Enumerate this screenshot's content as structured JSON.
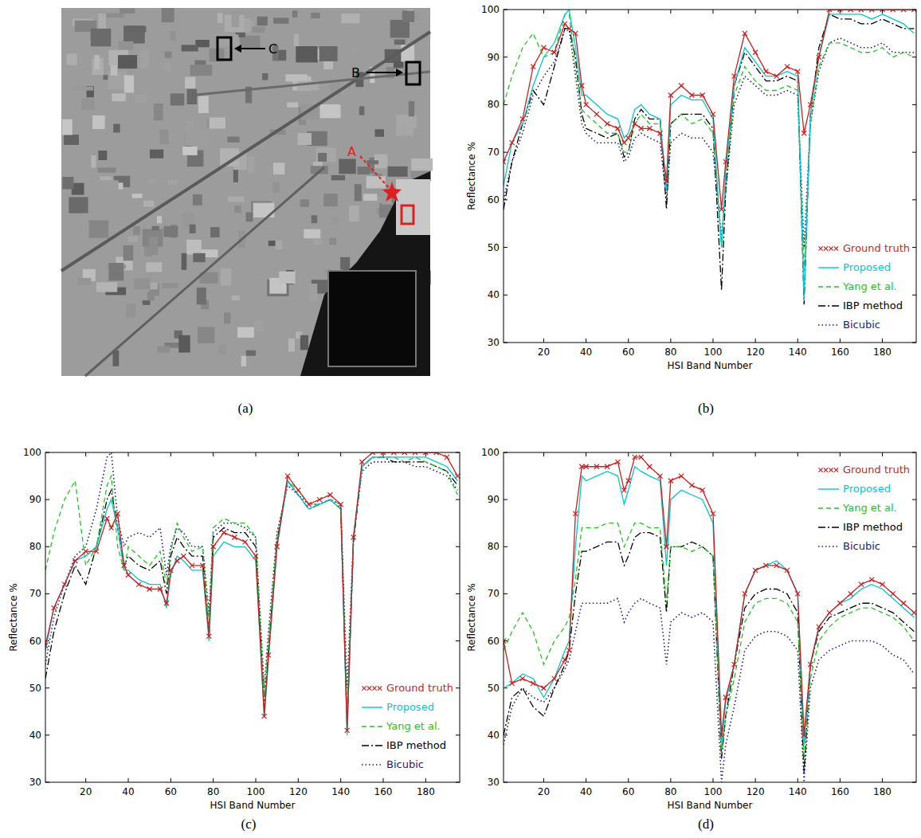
{
  "chart_data": [
    {
      "type": "image",
      "caption": "(a)",
      "annotations": [
        "A",
        "B",
        "C"
      ]
    },
    {
      "type": "line",
      "caption": "(b)",
      "x_label": "HSI Band Number",
      "y_label": "Reflectance %",
      "x": [
        1,
        5,
        10,
        15,
        20,
        25,
        30,
        32,
        35,
        38,
        40,
        45,
        50,
        55,
        58,
        60,
        63,
        66,
        70,
        75,
        78,
        80,
        85,
        90,
        95,
        100,
        104,
        106,
        110,
        115,
        120,
        125,
        130,
        135,
        140,
        143,
        146,
        150,
        155,
        160,
        165,
        170,
        175,
        180,
        185,
        190,
        195
      ],
      "xlim": [
        1,
        196
      ],
      "xticks": [
        20,
        40,
        60,
        80,
        100,
        120,
        140,
        160,
        180
      ],
      "ylim": [
        30,
        100
      ],
      "yticks": [
        30,
        40,
        50,
        60,
        70,
        80,
        90,
        100
      ],
      "legend": "lower right",
      "series": [
        {
          "name": "Ground truth",
          "color": "#cc1f1f",
          "marker": "x",
          "line_style": "solid",
          "values": [
            68,
            72,
            77,
            88,
            92,
            91,
            97,
            96,
            95,
            84,
            80,
            78,
            76,
            75,
            72,
            73,
            76,
            75,
            75,
            74,
            64,
            82,
            84,
            82,
            82,
            78,
            58,
            68,
            86,
            95,
            91,
            87,
            86,
            88,
            87,
            74,
            80,
            90,
            100,
            100,
            100,
            100,
            100,
            100,
            100,
            100,
            100
          ]
        },
        {
          "name": "Proposed",
          "color": "#00c8d2",
          "marker": "none",
          "line_style": "solid",
          "values": [
            63,
            72,
            76,
            84,
            90,
            93,
            99,
            100,
            92,
            82,
            82,
            80,
            78,
            77,
            73,
            74,
            79,
            80,
            78,
            77,
            62,
            80,
            82,
            81,
            81,
            77,
            50,
            66,
            84,
            92,
            89,
            86,
            86,
            87,
            86,
            39,
            78,
            90,
            99,
            99,
            99,
            99,
            98,
            99,
            98,
            97,
            95
          ]
        },
        {
          "name": "Yang et al.",
          "color": "#22c422",
          "marker": "none",
          "line_style": "dashed",
          "values": [
            80,
            86,
            92,
            95,
            90,
            91,
            99,
            99,
            88,
            79,
            78,
            76,
            74,
            74,
            70,
            70,
            76,
            78,
            76,
            76,
            62,
            76,
            78,
            76,
            77,
            74,
            50,
            64,
            82,
            88,
            85,
            83,
            83,
            84,
            83,
            45,
            76,
            88,
            93,
            93,
            92,
            91,
            91,
            92,
            90,
            91,
            90
          ]
        },
        {
          "name": "IBP method",
          "color": "#000000",
          "marker": "none",
          "line_style": "dashdot",
          "values": [
            58,
            68,
            76,
            83,
            80,
            88,
            96,
            96,
            90,
            78,
            75,
            74,
            73,
            74,
            69,
            70,
            77,
            79,
            77,
            77,
            58,
            76,
            78,
            78,
            78,
            75,
            41,
            62,
            84,
            91,
            88,
            85,
            85,
            86,
            85,
            38,
            78,
            92,
            99,
            98,
            98,
            97,
            97,
            98,
            97,
            96,
            96
          ]
        },
        {
          "name": "Bicubic",
          "color": "#1c1c7a",
          "marker": "none",
          "line_style": "dotted",
          "values": [
            60,
            68,
            74,
            82,
            86,
            89,
            96,
            96,
            86,
            76,
            74,
            72,
            72,
            72,
            68,
            69,
            73,
            74,
            73,
            72,
            60,
            72,
            74,
            73,
            73,
            70,
            52,
            62,
            80,
            86,
            84,
            82,
            82,
            83,
            82,
            50,
            76,
            87,
            93,
            94,
            93,
            92,
            92,
            93,
            91,
            91,
            91
          ]
        }
      ]
    },
    {
      "type": "line",
      "caption": "(c)",
      "x_label": "HSI Band Number",
      "y_label": "Reflectance %",
      "x": [
        1,
        5,
        10,
        15,
        20,
        25,
        30,
        32,
        35,
        38,
        40,
        45,
        50,
        55,
        58,
        60,
        63,
        66,
        70,
        75,
        78,
        80,
        85,
        90,
        95,
        100,
        104,
        106,
        110,
        115,
        120,
        125,
        130,
        135,
        140,
        143,
        146,
        150,
        155,
        160,
        165,
        170,
        175,
        180,
        185,
        190,
        195
      ],
      "xlim": [
        1,
        196
      ],
      "xticks": [
        20,
        40,
        60,
        80,
        100,
        120,
        140,
        160,
        180
      ],
      "ylim": [
        30,
        100
      ],
      "yticks": [
        30,
        40,
        50,
        60,
        70,
        80,
        90,
        100
      ],
      "legend": "lower right",
      "series": [
        {
          "name": "Ground truth",
          "color": "#cc1f1f",
          "marker": "x",
          "line_style": "solid",
          "values": [
            59,
            67,
            72,
            77,
            79,
            79,
            86,
            84,
            87,
            76,
            74,
            72,
            71,
            71,
            68,
            75,
            77,
            78,
            76,
            76,
            61,
            80,
            83,
            82,
            81,
            78,
            44,
            57,
            80,
            95,
            92,
            89,
            90,
            91,
            89,
            41,
            82,
            98,
            100,
            100,
            100,
            100,
            100,
            100,
            100,
            99,
            95
          ]
        },
        {
          "name": "Proposed",
          "color": "#00c8d2",
          "marker": "none",
          "line_style": "solid",
          "values": [
            58,
            67,
            72,
            77,
            78,
            80,
            88,
            90,
            84,
            75,
            75,
            73,
            72,
            72,
            67,
            74,
            78,
            77,
            75,
            75,
            60,
            78,
            81,
            80,
            80,
            77,
            44,
            56,
            80,
            94,
            91,
            88,
            89,
            90,
            88,
            40,
            82,
            97,
            99,
            99,
            99,
            99,
            99,
            99,
            98,
            97,
            94
          ]
        },
        {
          "name": "Yang et al.",
          "color": "#22c422",
          "marker": "none",
          "line_style": "dashed",
          "values": [
            75,
            83,
            90,
            94,
            76,
            80,
            93,
            95,
            80,
            75,
            80,
            78,
            76,
            79,
            72,
            79,
            85,
            82,
            79,
            80,
            64,
            84,
            86,
            85,
            85,
            82,
            48,
            60,
            82,
            94,
            92,
            89,
            89,
            90,
            89,
            45,
            82,
            97,
            99,
            99,
            99,
            98,
            99,
            98,
            97,
            96,
            91
          ]
        },
        {
          "name": "IBP method",
          "color": "#000000",
          "marker": "none",
          "line_style": "dashdot",
          "values": [
            52,
            62,
            70,
            76,
            72,
            80,
            90,
            92,
            84,
            76,
            78,
            76,
            75,
            77,
            70,
            78,
            82,
            80,
            78,
            78,
            61,
            82,
            84,
            83,
            83,
            80,
            46,
            58,
            81,
            94,
            91,
            88,
            89,
            90,
            88,
            42,
            81,
            97,
            99,
            99,
            98,
            98,
            98,
            98,
            97,
            96,
            93
          ]
        },
        {
          "name": "Bicubic",
          "color": "#1c1c7a",
          "marker": "none",
          "line_style": "dotted",
          "values": [
            55,
            65,
            72,
            78,
            80,
            88,
            99,
            100,
            86,
            80,
            82,
            83,
            82,
            84,
            74,
            80,
            84,
            83,
            80,
            80,
            66,
            83,
            85,
            85,
            84,
            82,
            50,
            62,
            83,
            93,
            91,
            89,
            89,
            90,
            89,
            50,
            82,
            96,
            98,
            98,
            98,
            98,
            97,
            97,
            96,
            95,
            92
          ]
        }
      ]
    },
    {
      "type": "line",
      "caption": "(d)",
      "x_label": "HSI Band Number",
      "y_label": "Reflectance %",
      "x": [
        1,
        5,
        10,
        15,
        20,
        25,
        30,
        32,
        35,
        38,
        40,
        45,
        50,
        55,
        58,
        60,
        63,
        66,
        70,
        75,
        78,
        80,
        85,
        90,
        95,
        100,
        104,
        106,
        110,
        115,
        120,
        125,
        130,
        135,
        140,
        143,
        146,
        150,
        155,
        160,
        165,
        170,
        175,
        180,
        185,
        190,
        195
      ],
      "xlim": [
        1,
        196
      ],
      "xticks": [
        20,
        40,
        60,
        80,
        100,
        120,
        140,
        160,
        180
      ],
      "ylim": [
        30,
        100
      ],
      "yticks": [
        30,
        40,
        50,
        60,
        70,
        80,
        90,
        100
      ],
      "legend": "upper right",
      "series": [
        {
          "name": "Ground truth",
          "color": "#cc1f1f",
          "marker": "x",
          "line_style": "solid",
          "values": [
            60,
            51,
            52,
            51,
            50,
            52,
            56,
            58,
            87,
            97,
            97,
            97,
            97,
            98,
            92,
            94,
            99,
            99,
            97,
            95,
            80,
            94,
            95,
            93,
            92,
            87,
            40,
            48,
            55,
            70,
            75,
            76,
            76,
            75,
            70,
            40,
            55,
            63,
            66,
            68,
            70,
            72,
            73,
            72,
            70,
            68,
            66
          ]
        },
        {
          "name": "Proposed",
          "color": "#00c8d2",
          "marker": "none",
          "line_style": "solid",
          "values": [
            50,
            51,
            53,
            52,
            48,
            52,
            58,
            60,
            80,
            95,
            94,
            95,
            96,
            95,
            89,
            92,
            97,
            96,
            95,
            94,
            76,
            90,
            92,
            91,
            90,
            85,
            38,
            47,
            55,
            70,
            75,
            76,
            77,
            75,
            70,
            38,
            55,
            63,
            66,
            68,
            69,
            71,
            72,
            71,
            69,
            67,
            65
          ]
        },
        {
          "name": "Yang et al.",
          "color": "#22c422",
          "marker": "none",
          "line_style": "dashed",
          "values": [
            58,
            62,
            66,
            62,
            55,
            60,
            63,
            65,
            73,
            84,
            84,
            84,
            85,
            85,
            80,
            82,
            85,
            85,
            84,
            84,
            68,
            80,
            80,
            79,
            80,
            78,
            36,
            44,
            52,
            64,
            68,
            69,
            69,
            68,
            64,
            35,
            52,
            60,
            63,
            65,
            66,
            67,
            67,
            66,
            65,
            63,
            60
          ]
        },
        {
          "name": "IBP method",
          "color": "#000000",
          "marker": "none",
          "line_style": "dashdot",
          "values": [
            40,
            48,
            50,
            46,
            44,
            50,
            55,
            58,
            70,
            79,
            79,
            80,
            81,
            81,
            76,
            78,
            82,
            83,
            83,
            82,
            66,
            80,
            80,
            81,
            80,
            78,
            35,
            44,
            55,
            67,
            70,
            71,
            71,
            70,
            66,
            32,
            55,
            62,
            65,
            66,
            67,
            68,
            68,
            67,
            66,
            64,
            62
          ]
        },
        {
          "name": "Bicubic",
          "color": "#1c1c7a",
          "marker": "none",
          "line_style": "dotted",
          "values": [
            38,
            46,
            50,
            48,
            47,
            50,
            54,
            56,
            62,
            68,
            68,
            68,
            68,
            69,
            64,
            66,
            68,
            69,
            68,
            67,
            55,
            64,
            66,
            65,
            66,
            64,
            30,
            38,
            46,
            58,
            61,
            62,
            62,
            61,
            58,
            30,
            50,
            56,
            58,
            59,
            60,
            60,
            60,
            59,
            57,
            56,
            53
          ]
        }
      ]
    }
  ]
}
